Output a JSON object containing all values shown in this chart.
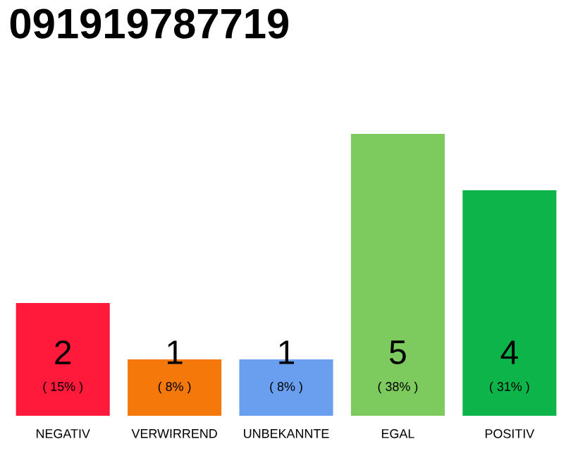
{
  "chart_data": {
    "type": "bar",
    "title": "091919787719",
    "categories": [
      "NEGATIV",
      "VERWIRREND",
      "UNBEKANNTE",
      "EGAL",
      "POSITIV"
    ],
    "values": [
      2,
      1,
      1,
      5,
      4
    ],
    "colors": [
      "#ff1a3c",
      "#f5780a",
      "#6a9ff0",
      "#7dcb5f",
      "#0db449"
    ],
    "data_labels": true,
    "annotations": [
      "( 15% )",
      "( 8% )",
      "( 8% )",
      "( 38% )",
      "( 31% )"
    ]
  }
}
